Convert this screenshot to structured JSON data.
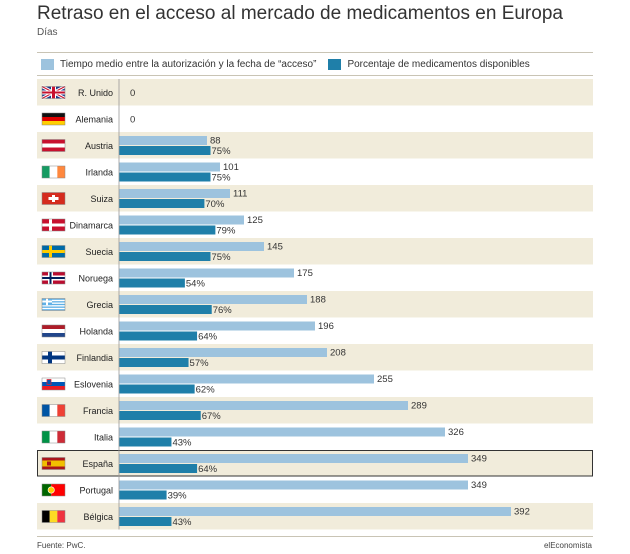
{
  "title": "Retraso en el acceso al mercado de medicamentos en Europa",
  "subtitle": "Días",
  "source": "Fuente: PwC.",
  "brand": "elEconomista",
  "colors": {
    "days": "#9dc3de",
    "percent": "#1f7fa9",
    "stripe": "#f1ecdb",
    "highlight_border": "#333333"
  },
  "chart_data": {
    "type": "bar",
    "orientation": "horizontal",
    "categories": [
      "R. Unido",
      "Alemania",
      "Austria",
      "Irlanda",
      "Suiza",
      "Dinamarca",
      "Suecia",
      "Noruega",
      "Grecia",
      "Holanda",
      "Finlandia",
      "Eslovenia",
      "Francia",
      "Italia",
      "España",
      "Portugal",
      "Bélgica"
    ],
    "flags": [
      "uk-flag-icon",
      "germany-flag-icon",
      "austria-flag-icon",
      "ireland-flag-icon",
      "switzerland-flag-icon",
      "denmark-flag-icon",
      "sweden-flag-icon",
      "norway-flag-icon",
      "greece-flag-icon",
      "netherlands-flag-icon",
      "finland-flag-icon",
      "slovenia-flag-icon",
      "france-flag-icon",
      "italy-flag-icon",
      "spain-flag-icon",
      "portugal-flag-icon",
      "belgium-flag-icon"
    ],
    "highlight": "España",
    "series": [
      {
        "name": "Tiempo medio entre la autorización y la fecha de “acceso”",
        "values": [
          0,
          0,
          88,
          101,
          111,
          125,
          145,
          175,
          188,
          196,
          208,
          255,
          289,
          326,
          349,
          349,
          392
        ],
        "labels": [
          "0",
          "0",
          "88",
          "101",
          "111",
          "125",
          "145",
          "175",
          "188",
          "196",
          "208",
          "255",
          "289",
          "326",
          "349",
          "349",
          "392"
        ]
      },
      {
        "name": "Porcentaje de medicamentos disponibles",
        "values": [
          null,
          null,
          75,
          75,
          70,
          79,
          75,
          54,
          76,
          64,
          57,
          62,
          67,
          43,
          64,
          39,
          43
        ],
        "labels": [
          null,
          null,
          "75%",
          "75%",
          "70%",
          "79%",
          "75%",
          "54%",
          "76%",
          "64%",
          "57%",
          "62%",
          "67%",
          "43%",
          "64%",
          "39%",
          "43%"
        ]
      }
    ],
    "xlim_days": [
      0,
      392
    ],
    "xlim_percent": [
      0,
      100
    ],
    "grid": false,
    "legend_position": "top"
  }
}
